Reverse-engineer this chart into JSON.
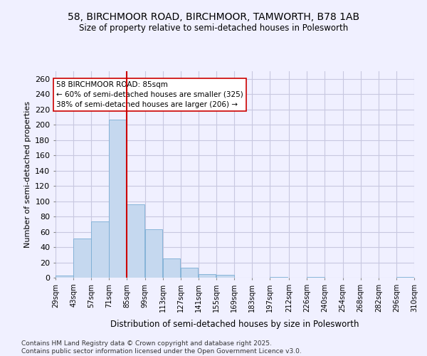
{
  "title_line1": "58, BIRCHMOOR ROAD, BIRCHMOOR, TAMWORTH, B78 1AB",
  "title_line2": "Size of property relative to semi-detached houses in Polesworth",
  "xlabel": "Distribution of semi-detached houses by size in Polesworth",
  "ylabel": "Number of semi-detached properties",
  "bins": [
    29,
    43,
    57,
    71,
    85,
    99,
    113,
    127,
    141,
    155,
    169,
    183,
    197,
    212,
    226,
    240,
    254,
    268,
    282,
    296,
    310
  ],
  "counts": [
    3,
    51,
    74,
    207,
    96,
    63,
    25,
    13,
    5,
    4,
    0,
    0,
    1,
    0,
    1,
    0,
    0,
    0,
    0,
    1
  ],
  "bar_color": "#c5d8ef",
  "bar_edge_color": "#7aaed4",
  "vline_x": 85,
  "vline_color": "#cc0000",
  "annotation_text": "58 BIRCHMOOR ROAD: 85sqm\n← 60% of semi-detached houses are smaller (325)\n38% of semi-detached houses are larger (206) →",
  "annotation_box_color": "#ffffff",
  "annotation_box_edge": "#cc0000",
  "ylim": [
    0,
    270
  ],
  "yticks": [
    0,
    20,
    40,
    60,
    80,
    100,
    120,
    140,
    160,
    180,
    200,
    220,
    240,
    260
  ],
  "tick_labels": [
    "29sqm",
    "43sqm",
    "57sqm",
    "71sqm",
    "85sqm",
    "99sqm",
    "113sqm",
    "127sqm",
    "141sqm",
    "155sqm",
    "169sqm",
    "183sqm",
    "197sqm",
    "212sqm",
    "226sqm",
    "240sqm",
    "254sqm",
    "268sqm",
    "282sqm",
    "296sqm",
    "310sqm"
  ],
  "footer_text": "Contains HM Land Registry data © Crown copyright and database right 2025.\nContains public sector information licensed under the Open Government Licence v3.0.",
  "bg_color": "#f0f0ff",
  "grid_color": "#c8c8e0"
}
